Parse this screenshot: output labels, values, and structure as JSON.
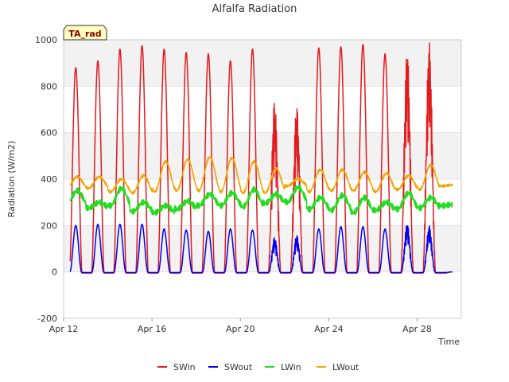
{
  "chart_data": {
    "type": "line",
    "title": "Alfalfa Radiation",
    "xlabel": "Time",
    "ylabel": "Radiation (W/m2)",
    "badge": "TA_rad",
    "ylim": [
      -200,
      1000
    ],
    "yticks": [
      -200,
      0,
      200,
      400,
      600,
      800,
      1000
    ],
    "xlim": [
      "2023-04-12",
      "2023-04-30"
    ],
    "xticks": [
      {
        "date": "2023-04-12",
        "label": "Apr 12"
      },
      {
        "date": "2023-04-16",
        "label": "Apr 16"
      },
      {
        "date": "2023-04-20",
        "label": "Apr 20"
      },
      {
        "date": "2023-04-24",
        "label": "Apr 24"
      },
      {
        "date": "2023-04-28",
        "label": "Apr 28"
      }
    ],
    "grid": true,
    "legend_position": "bottom",
    "x_dates": [
      "2023-04-12",
      "2023-04-13",
      "2023-04-14",
      "2023-04-15",
      "2023-04-16",
      "2023-04-17",
      "2023-04-18",
      "2023-04-19",
      "2023-04-20",
      "2023-04-21",
      "2023-04-22",
      "2023-04-23",
      "2023-04-24",
      "2023-04-25",
      "2023-04-26",
      "2023-04-27",
      "2023-04-28",
      "2023-04-29"
    ],
    "series": [
      {
        "name": "SWin",
        "color": "#e31a1c",
        "daily_peak": [
          880,
          910,
          960,
          975,
          960,
          945,
          940,
          910,
          960,
          740,
          720,
          965,
          970,
          980,
          940,
          960,
          990,
          0
        ],
        "daily_min": [
          -5,
          -5,
          -5,
          -5,
          -5,
          -5,
          -5,
          -5,
          -5,
          -5,
          -5,
          -5,
          -5,
          -5,
          -5,
          -5,
          -5,
          -5
        ]
      },
      {
        "name": "SWout",
        "color": "#0000ee",
        "daily_peak": [
          200,
          205,
          205,
          205,
          185,
          180,
          175,
          185,
          180,
          150,
          160,
          185,
          195,
          195,
          185,
          210,
          200,
          0
        ],
        "daily_min": [
          -3,
          -3,
          -3,
          -3,
          -3,
          -3,
          -3,
          -3,
          -3,
          -3,
          -3,
          -3,
          -3,
          -3,
          -3,
          -3,
          -3,
          -3
        ]
      },
      {
        "name": "LWin",
        "color": "#22dd22",
        "daily_peak": [
          350,
          300,
          360,
          300,
          285,
          305,
          335,
          340,
          355,
          335,
          365,
          320,
          330,
          320,
          300,
          340,
          320,
          290
        ],
        "daily_min": [
          290,
          275,
          285,
          260,
          255,
          270,
          285,
          285,
          280,
          295,
          300,
          270,
          265,
          255,
          265,
          270,
          275,
          285
        ]
      },
      {
        "name": "LWout",
        "color": "#f5a300",
        "daily_peak": [
          410,
          410,
          400,
          415,
          475,
          485,
          495,
          490,
          475,
          445,
          400,
          440,
          440,
          430,
          425,
          415,
          460,
          375
        ],
        "daily_min": [
          360,
          360,
          345,
          340,
          345,
          350,
          350,
          345,
          340,
          340,
          370,
          345,
          350,
          350,
          345,
          355,
          355,
          370
        ]
      }
    ]
  }
}
